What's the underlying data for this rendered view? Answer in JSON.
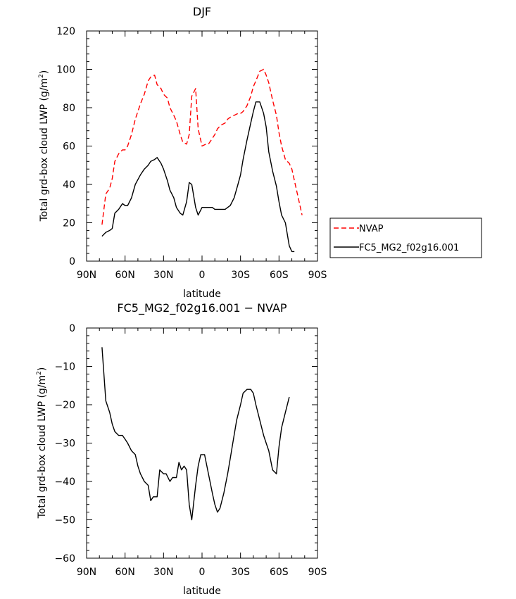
{
  "chart_data": [
    {
      "type": "line",
      "title": "DJF",
      "xlabel": "latitude",
      "ylabel": "Total grd-box cloud LWP (g/m²)",
      "ylabel_main": "Total grd-box cloud LWP (g/m",
      "ylabel_sup": "2",
      "ylabel_end": ")",
      "xlim": [
        90,
        -90
      ],
      "ylim": [
        0,
        120
      ],
      "xticks": [
        {
          "value": 90,
          "label": "90N"
        },
        {
          "value": 60,
          "label": "60N"
        },
        {
          "value": 30,
          "label": "30N"
        },
        {
          "value": 0,
          "label": "0"
        },
        {
          "value": -30,
          "label": "30S"
        },
        {
          "value": -60,
          "label": "60S"
        },
        {
          "value": -90,
          "label": "90S"
        }
      ],
      "yticks": [
        0,
        20,
        40,
        60,
        80,
        100,
        120
      ],
      "grid": false,
      "legend_position": "right, outside plot",
      "x": [
        78,
        75,
        72,
        70,
        68,
        65,
        62,
        60,
        58,
        55,
        52,
        48,
        45,
        42,
        40,
        37,
        35,
        32,
        30,
        27,
        25,
        22,
        20,
        17,
        15,
        12,
        10,
        8,
        5,
        3,
        0,
        -3,
        -5,
        -8,
        -10,
        -12,
        -15,
        -18,
        -20,
        -22,
        -25,
        -28,
        -30,
        -32,
        -35,
        -38,
        -40,
        -42,
        -45,
        -48,
        -50,
        -52,
        -55,
        -58,
        -60,
        -62,
        -65,
        -68,
        -70,
        -72,
        -75,
        -78
      ],
      "series": [
        {
          "name": "NVAP",
          "color": "#ff0000",
          "dash": "dashed",
          "values": [
            19,
            35,
            38,
            43,
            52,
            56,
            58,
            58,
            60,
            66,
            74,
            82,
            87,
            94,
            96,
            97,
            92,
            90,
            87,
            85,
            80,
            76,
            73,
            66,
            62,
            61,
            66,
            86,
            90,
            69,
            60,
            61,
            61,
            64,
            66,
            69,
            71,
            72,
            74,
            75,
            76,
            77,
            77,
            78,
            81,
            86,
            91,
            94,
            99,
            100,
            97,
            93,
            84,
            76,
            67,
            60,
            53,
            51,
            48,
            42,
            33,
            24
          ]
        },
        {
          "name": "FC5_MG2_f02g16.001",
          "color": "#000000",
          "dash": "solid",
          "values": [
            13,
            15,
            16,
            17,
            25,
            27,
            30,
            29,
            29,
            33,
            40,
            45,
            48,
            50,
            52,
            53,
            54,
            51,
            48,
            42,
            37,
            33,
            28,
            25,
            24,
            31,
            41,
            40,
            28,
            24,
            28,
            28,
            28,
            28,
            27,
            27,
            27,
            27,
            28,
            29,
            33,
            40,
            45,
            53,
            63,
            72,
            78,
            83,
            83,
            77,
            70,
            57,
            47,
            39,
            31,
            24,
            20,
            8,
            5,
            5,
            null,
            null
          ]
        }
      ]
    },
    {
      "type": "line",
      "title": "FC5_MG2_f02g16.001 − NVAP",
      "xlabel": "latitude",
      "ylabel": "Total grd-box cloud LWP (g/m²)",
      "ylabel_main": "Total grd-box cloud LWP (g/m",
      "ylabel_sup": "2",
      "ylabel_end": ")",
      "xlim": [
        90,
        -90
      ],
      "ylim": [
        -60,
        0
      ],
      "xticks": [
        {
          "value": 90,
          "label": "90N"
        },
        {
          "value": 60,
          "label": "60N"
        },
        {
          "value": 30,
          "label": "30N"
        },
        {
          "value": 0,
          "label": "0"
        },
        {
          "value": -30,
          "label": "30S"
        },
        {
          "value": -60,
          "label": "60S"
        },
        {
          "value": -90,
          "label": "90S"
        }
      ],
      "yticks": [
        0,
        -10,
        -20,
        -30,
        -40,
        -50,
        -60
      ],
      "grid": false,
      "x": [
        78,
        75,
        72,
        70,
        68,
        65,
        62,
        60,
        58,
        55,
        52,
        50,
        48,
        45,
        42,
        40,
        38,
        35,
        33,
        30,
        28,
        25,
        23,
        20,
        18,
        16,
        14,
        12,
        10,
        8,
        5,
        3,
        1,
        -2,
        -5,
        -8,
        -10,
        -12,
        -14,
        -17,
        -20,
        -22,
        -24,
        -27,
        -30,
        -32,
        -35,
        -38,
        -40,
        -42,
        -45,
        -48,
        -50,
        -52,
        -55,
        -58,
        -60,
        -62,
        -65,
        -68,
        -70,
        -72,
        -75,
        -78
      ],
      "series": [
        {
          "name": "FC5_MG2_f02g16.001 − NVAP",
          "color": "#000000",
          "dash": "solid",
          "values": [
            -5,
            -19,
            -22,
            -25,
            -27,
            -28,
            -28,
            -29,
            -30,
            -32,
            -33,
            -36,
            -38,
            -40,
            -41,
            -45,
            -44,
            -44,
            -37,
            -38,
            -38,
            -40,
            -39,
            -39,
            -35,
            -37,
            -36,
            -37,
            -46,
            -50,
            -41,
            -36,
            -33,
            -33,
            -38,
            -43,
            -46,
            -48,
            -47,
            -43,
            -38,
            -34,
            -30,
            -24,
            -20,
            -17,
            -16,
            -16,
            -17,
            -20,
            -24,
            -28,
            -30,
            -32,
            -37,
            -38,
            -31,
            -26,
            -22,
            -18,
            null,
            null,
            null,
            null
          ]
        }
      ]
    }
  ]
}
